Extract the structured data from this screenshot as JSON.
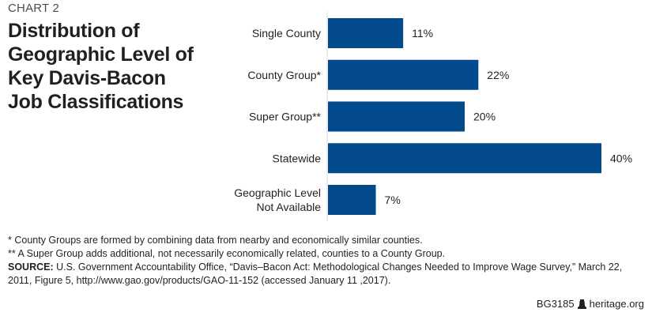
{
  "header": {
    "kicker": "CHART 2",
    "title_lines": [
      "Distribution of",
      "Geographic Level of",
      "Key Davis-Bacon",
      "Job Classifications"
    ]
  },
  "chart_data": {
    "type": "bar",
    "orientation": "horizontal",
    "title": "Distribution of Geographic Level of Key Davis-Bacon Job Classifications",
    "categories": [
      "Single County",
      "County Group*",
      "Super Group**",
      "Statewide",
      "Geographic Level Not Available"
    ],
    "category_label_lines": [
      [
        "Single County"
      ],
      [
        "County Group*"
      ],
      [
        "Super Group**"
      ],
      [
        "Statewide"
      ],
      [
        "Geographic Level",
        "Not Available"
      ]
    ],
    "values": [
      11,
      22,
      20,
      40,
      7
    ],
    "value_labels": [
      "11%",
      "22%",
      "20%",
      "40%",
      "7%"
    ],
    "unit": "%",
    "xlabel": "",
    "ylabel": "",
    "xlim": [
      0,
      40
    ],
    "grid": false,
    "legend": "none",
    "bar_color": "#034a8d"
  },
  "notes": {
    "footnote1": "* County Groups are formed by combining data from nearby and economically similar counties.",
    "footnote2": "** A Super Group adds additional, not necessarily economically related, counties to a County Group.",
    "source_label": "SOURCE:",
    "source_text": " U.S. Government Accountability Office, “Davis–Bacon Act: Methodological Changes Needed to Improve Wage Survey,” March 22, 2011, Figure 5, http://www.gao.gov/products/GAO-11-152 (accessed January 11 ,2017)."
  },
  "footer": {
    "code": "BG3185",
    "logo_icon": "liberty-bell-icon",
    "site": "heritage.org"
  }
}
